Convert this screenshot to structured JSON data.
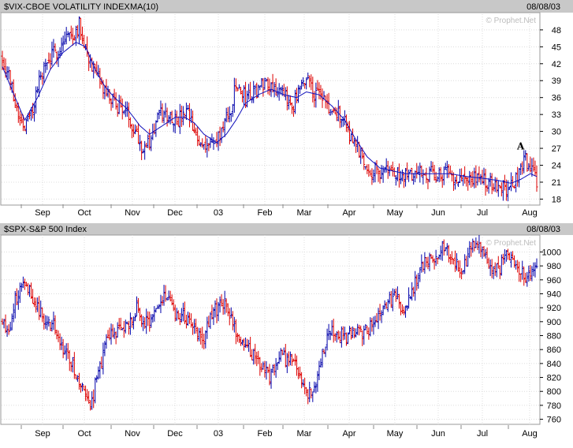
{
  "colors": {
    "header_bg": "#c8c8c8",
    "frame": "#9a9a9a",
    "up_bar": "#0000aa",
    "down_bar": "#dd0000",
    "moving_average": "#1010bb",
    "watermark": "#bdbdbd"
  },
  "x_axis": {
    "labels": [
      "Sep",
      "Oct",
      "Nov",
      "Dec",
      "03",
      "Feb",
      "Mar",
      "Apr",
      "May",
      "Jun",
      "Jul",
      "Aug"
    ]
  },
  "chart_data": [
    {
      "type": "ohlc",
      "title": "$VIX-CBOE VOLATILITY INDEX",
      "overlay_label": "MA(10)",
      "date": "08/08/03",
      "watermark": "© Prophet.Net",
      "annotation": "A",
      "ylim": [
        17.5,
        50.5
      ],
      "yticks": [
        18,
        21,
        24,
        27,
        30,
        33,
        36,
        39,
        42,
        45,
        48
      ],
      "grid": true,
      "months": [
        "Sep",
        "Oct",
        "Nov",
        "Dec",
        "03",
        "Feb",
        "Mar",
        "Apr",
        "May",
        "Jun",
        "Jul",
        "Aug"
      ],
      "series_anchors": [
        [
          0,
          43
        ],
        [
          4,
          40
        ],
        [
          10,
          33
        ],
        [
          14,
          31
        ],
        [
          18,
          33
        ],
        [
          24,
          40
        ],
        [
          30,
          43
        ],
        [
          36,
          45
        ],
        [
          40,
          47
        ],
        [
          44,
          47
        ],
        [
          48,
          49
        ],
        [
          53,
          44
        ],
        [
          58,
          40
        ],
        [
          64,
          37
        ],
        [
          70,
          35
        ],
        [
          76,
          34
        ],
        [
          82,
          31
        ],
        [
          88,
          27
        ],
        [
          92,
          28
        ],
        [
          98,
          33
        ],
        [
          104,
          33
        ],
        [
          110,
          32
        ],
        [
          116,
          33
        ],
        [
          122,
          28
        ],
        [
          128,
          28
        ],
        [
          134,
          28
        ],
        [
          138,
          31
        ],
        [
          142,
          33
        ],
        [
          146,
          38
        ],
        [
          152,
          36
        ],
        [
          158,
          37
        ],
        [
          164,
          39
        ],
        [
          170,
          38
        ],
        [
          176,
          36
        ],
        [
          182,
          35
        ],
        [
          188,
          38
        ],
        [
          191,
          40
        ],
        [
          194,
          37
        ],
        [
          200,
          36
        ],
        [
          206,
          33
        ],
        [
          212,
          33
        ],
        [
          218,
          29
        ],
        [
          224,
          26
        ],
        [
          230,
          23
        ],
        [
          236,
          23
        ],
        [
          242,
          23
        ],
        [
          248,
          22
        ],
        [
          254,
          22
        ],
        [
          260,
          23
        ],
        [
          266,
          22.5
        ],
        [
          272,
          22.5
        ],
        [
          278,
          22.5
        ],
        [
          284,
          22
        ],
        [
          290,
          21.5
        ],
        [
          296,
          21.5
        ],
        [
          302,
          21
        ],
        [
          308,
          21
        ],
        [
          314,
          20
        ],
        [
          318,
          20
        ],
        [
          322,
          22
        ],
        [
          324,
          24
        ],
        [
          327,
          25
        ],
        [
          330,
          23
        ],
        [
          334,
          21.5
        ]
      ],
      "ma_anchors": [
        [
          0,
          41.5
        ],
        [
          8,
          36
        ],
        [
          14,
          32
        ],
        [
          22,
          36
        ],
        [
          30,
          41
        ],
        [
          38,
          44
        ],
        [
          46,
          45.8
        ],
        [
          52,
          45
        ],
        [
          58,
          41
        ],
        [
          64,
          38
        ],
        [
          70,
          36
        ],
        [
          78,
          34
        ],
        [
          86,
          31
        ],
        [
          92,
          29.5
        ],
        [
          100,
          31
        ],
        [
          108,
          32.5
        ],
        [
          114,
          32.5
        ],
        [
          120,
          31.5
        ],
        [
          126,
          29.5
        ],
        [
          134,
          28
        ],
        [
          140,
          29.5
        ],
        [
          146,
          32
        ],
        [
          152,
          35
        ],
        [
          160,
          36.5
        ],
        [
          168,
          37.5
        ],
        [
          176,
          36.5
        ],
        [
          184,
          36
        ],
        [
          190,
          37
        ],
        [
          198,
          36.5
        ],
        [
          206,
          34.5
        ],
        [
          214,
          32
        ],
        [
          220,
          29
        ],
        [
          228,
          25.5
        ],
        [
          236,
          23.5
        ],
        [
          244,
          23
        ],
        [
          252,
          22.5
        ],
        [
          260,
          22.5
        ],
        [
          270,
          22.5
        ],
        [
          280,
          22.5
        ],
        [
          290,
          22
        ],
        [
          300,
          21.7
        ],
        [
          310,
          21.3
        ],
        [
          318,
          20.8
        ],
        [
          324,
          21.5
        ],
        [
          330,
          22.5
        ],
        [
          334,
          22
        ]
      ]
    },
    {
      "type": "ohlc",
      "title": "$SPX-S&P 500 Index",
      "date": "08/08/03",
      "watermark": "© Prophet.Net",
      "ylim": [
        755,
        1022
      ],
      "yticks": [
        760,
        780,
        800,
        820,
        840,
        860,
        880,
        900,
        920,
        940,
        960,
        980,
        1000
      ],
      "grid": true,
      "months": [
        "Sep",
        "Oct",
        "Nov",
        "Dec",
        "03",
        "Feb",
        "Mar",
        "Apr",
        "May",
        "Jun",
        "Jul",
        "Aug"
      ],
      "series_anchors": [
        [
          0,
          902
        ],
        [
          4,
          888
        ],
        [
          8,
          930
        ],
        [
          14,
          962
        ],
        [
          20,
          930
        ],
        [
          26,
          900
        ],
        [
          32,
          895
        ],
        [
          38,
          860
        ],
        [
          44,
          840
        ],
        [
          50,
          800
        ],
        [
          55,
          775
        ],
        [
          60,
          830
        ],
        [
          66,
          875
        ],
        [
          72,
          885
        ],
        [
          78,
          892
        ],
        [
          84,
          920
        ],
        [
          88,
          895
        ],
        [
          94,
          905
        ],
        [
          100,
          930
        ],
        [
          104,
          940
        ],
        [
          108,
          915
        ],
        [
          114,
          905
        ],
        [
          120,
          892
        ],
        [
          126,
          880
        ],
        [
          132,
          915
        ],
        [
          138,
          928
        ],
        [
          144,
          895
        ],
        [
          150,
          865
        ],
        [
          156,
          855
        ],
        [
          162,
          835
        ],
        [
          168,
          820
        ],
        [
          174,
          848
        ],
        [
          180,
          845
        ],
        [
          186,
          825
        ],
        [
          190,
          800
        ],
        [
          194,
          795
        ],
        [
          198,
          835
        ],
        [
          204,
          885
        ],
        [
          210,
          880
        ],
        [
          216,
          880
        ],
        [
          222,
          885
        ],
        [
          228,
          885
        ],
        [
          234,
          905
        ],
        [
          240,
          925
        ],
        [
          246,
          935
        ],
        [
          252,
          915
        ],
        [
          258,
          955
        ],
        [
          264,
          985
        ],
        [
          270,
          995
        ],
        [
          276,
          1010
        ],
        [
          282,
          985
        ],
        [
          288,
          975
        ],
        [
          294,
          1005
        ],
        [
          298,
          1012
        ],
        [
          304,
          985
        ],
        [
          310,
          975
        ],
        [
          316,
          1000
        ],
        [
          322,
          980
        ],
        [
          328,
          965
        ],
        [
          334,
          978
        ]
      ]
    }
  ]
}
